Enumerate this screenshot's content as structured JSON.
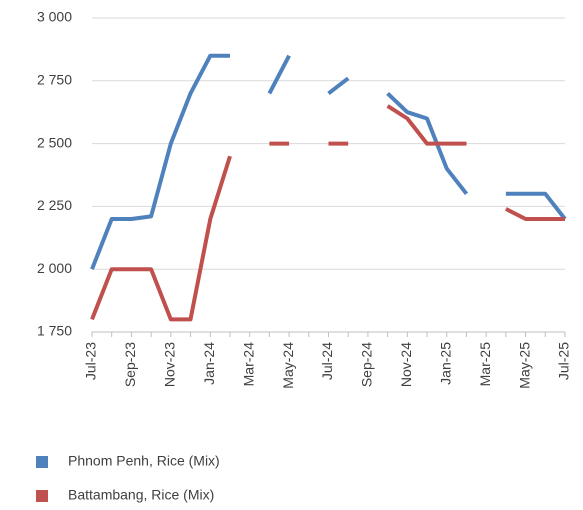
{
  "chart_data": {
    "type": "line",
    "categories": [
      "Jul-23",
      null,
      "Sep-23",
      null,
      "Nov-23",
      null,
      "Jan-24",
      null,
      "Mar-24",
      null,
      "May-24",
      null,
      "Jul-24",
      null,
      "Sep-24",
      null,
      "Nov-24",
      null,
      "Jan-25",
      null,
      "Mar-25",
      null,
      "May-25",
      null,
      "Jul-25"
    ],
    "series": [
      {
        "name": "Phnom Penh, Rice (Mix)",
        "color": "#4f81bd",
        "values": [
          2000,
          2200,
          2200,
          2210,
          2500,
          2700,
          2850,
          2850,
          null,
          2700,
          2850,
          null,
          2700,
          2760,
          null,
          2700,
          2625,
          2600,
          2400,
          2300,
          null,
          2300,
          2300,
          2300,
          2200
        ]
      },
      {
        "name": "Battambang, Rice (Mix)",
        "color": "#c0504d",
        "values": [
          1800,
          2000,
          2000,
          2000,
          1800,
          1800,
          2200,
          2450,
          null,
          2500,
          2500,
          null,
          2500,
          2500,
          null,
          2650,
          2600,
          2500,
          2500,
          2500,
          null,
          2240,
          2200,
          2200,
          2200
        ]
      }
    ],
    "ylim": [
      1750,
      3000
    ],
    "yticks": [
      {
        "value": 1750,
        "label": "1 750"
      },
      {
        "value": 2000,
        "label": "2 000"
      },
      {
        "value": 2250,
        "label": "2 250"
      },
      {
        "value": 2500,
        "label": "2 500"
      },
      {
        "value": 2750,
        "label": "2 750"
      },
      {
        "value": 3000,
        "label": "3 000"
      }
    ],
    "grid": true
  }
}
